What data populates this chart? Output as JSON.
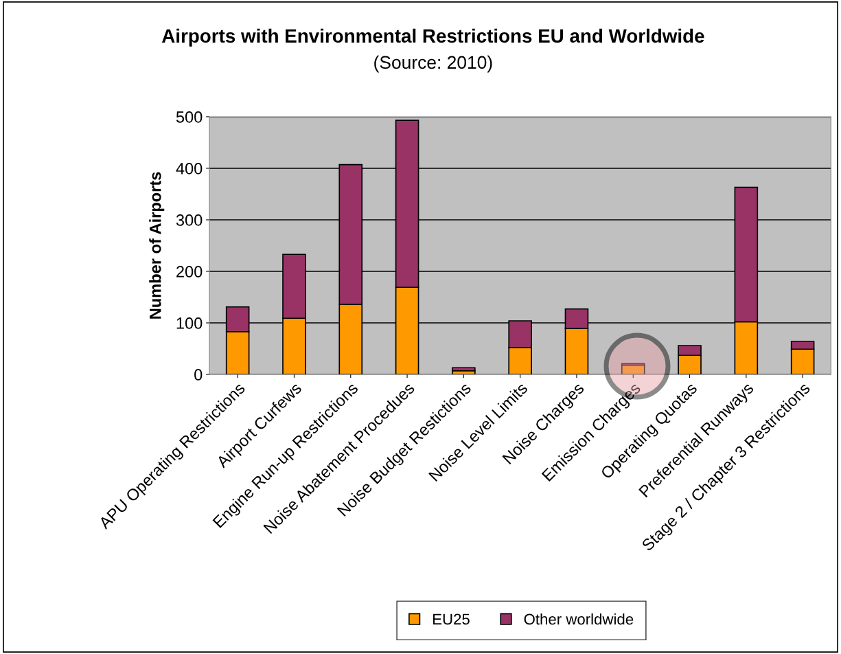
{
  "chart_data": {
    "type": "bar",
    "title": "Airports with Environmental Restrictions EU and Worldwide",
    "subtitle": "(Source: 2010)",
    "ylabel": "Number of Airports",
    "categories": [
      "APU Operating Restrictions",
      "Airport Curfews",
      "Engine Run-up Restrictions",
      "Noise Abatement Procedues",
      "Noise Budget Restictions",
      "Noise Level Limits",
      "Noise Charges",
      "Emission Charges",
      "Operating Quotas",
      "Preferential Runways",
      "Stage 2 / Chapter 3 Restrictions"
    ],
    "series": [
      {
        "name": "EU25",
        "color": "#ff9900",
        "values": [
          83,
          109,
          136,
          169,
          7,
          52,
          89,
          18,
          37,
          102,
          49
        ]
      },
      {
        "name": "Other worldwide",
        "color": "#993366",
        "values": [
          48,
          124,
          271,
          324,
          6,
          52,
          38,
          3,
          19,
          261,
          15
        ]
      }
    ],
    "stacked": true,
    "ylim": [
      0,
      500
    ],
    "yticks": [
      0,
      100,
      200,
      300,
      400,
      500
    ],
    "grid": "y",
    "legend": "bottom"
  }
}
